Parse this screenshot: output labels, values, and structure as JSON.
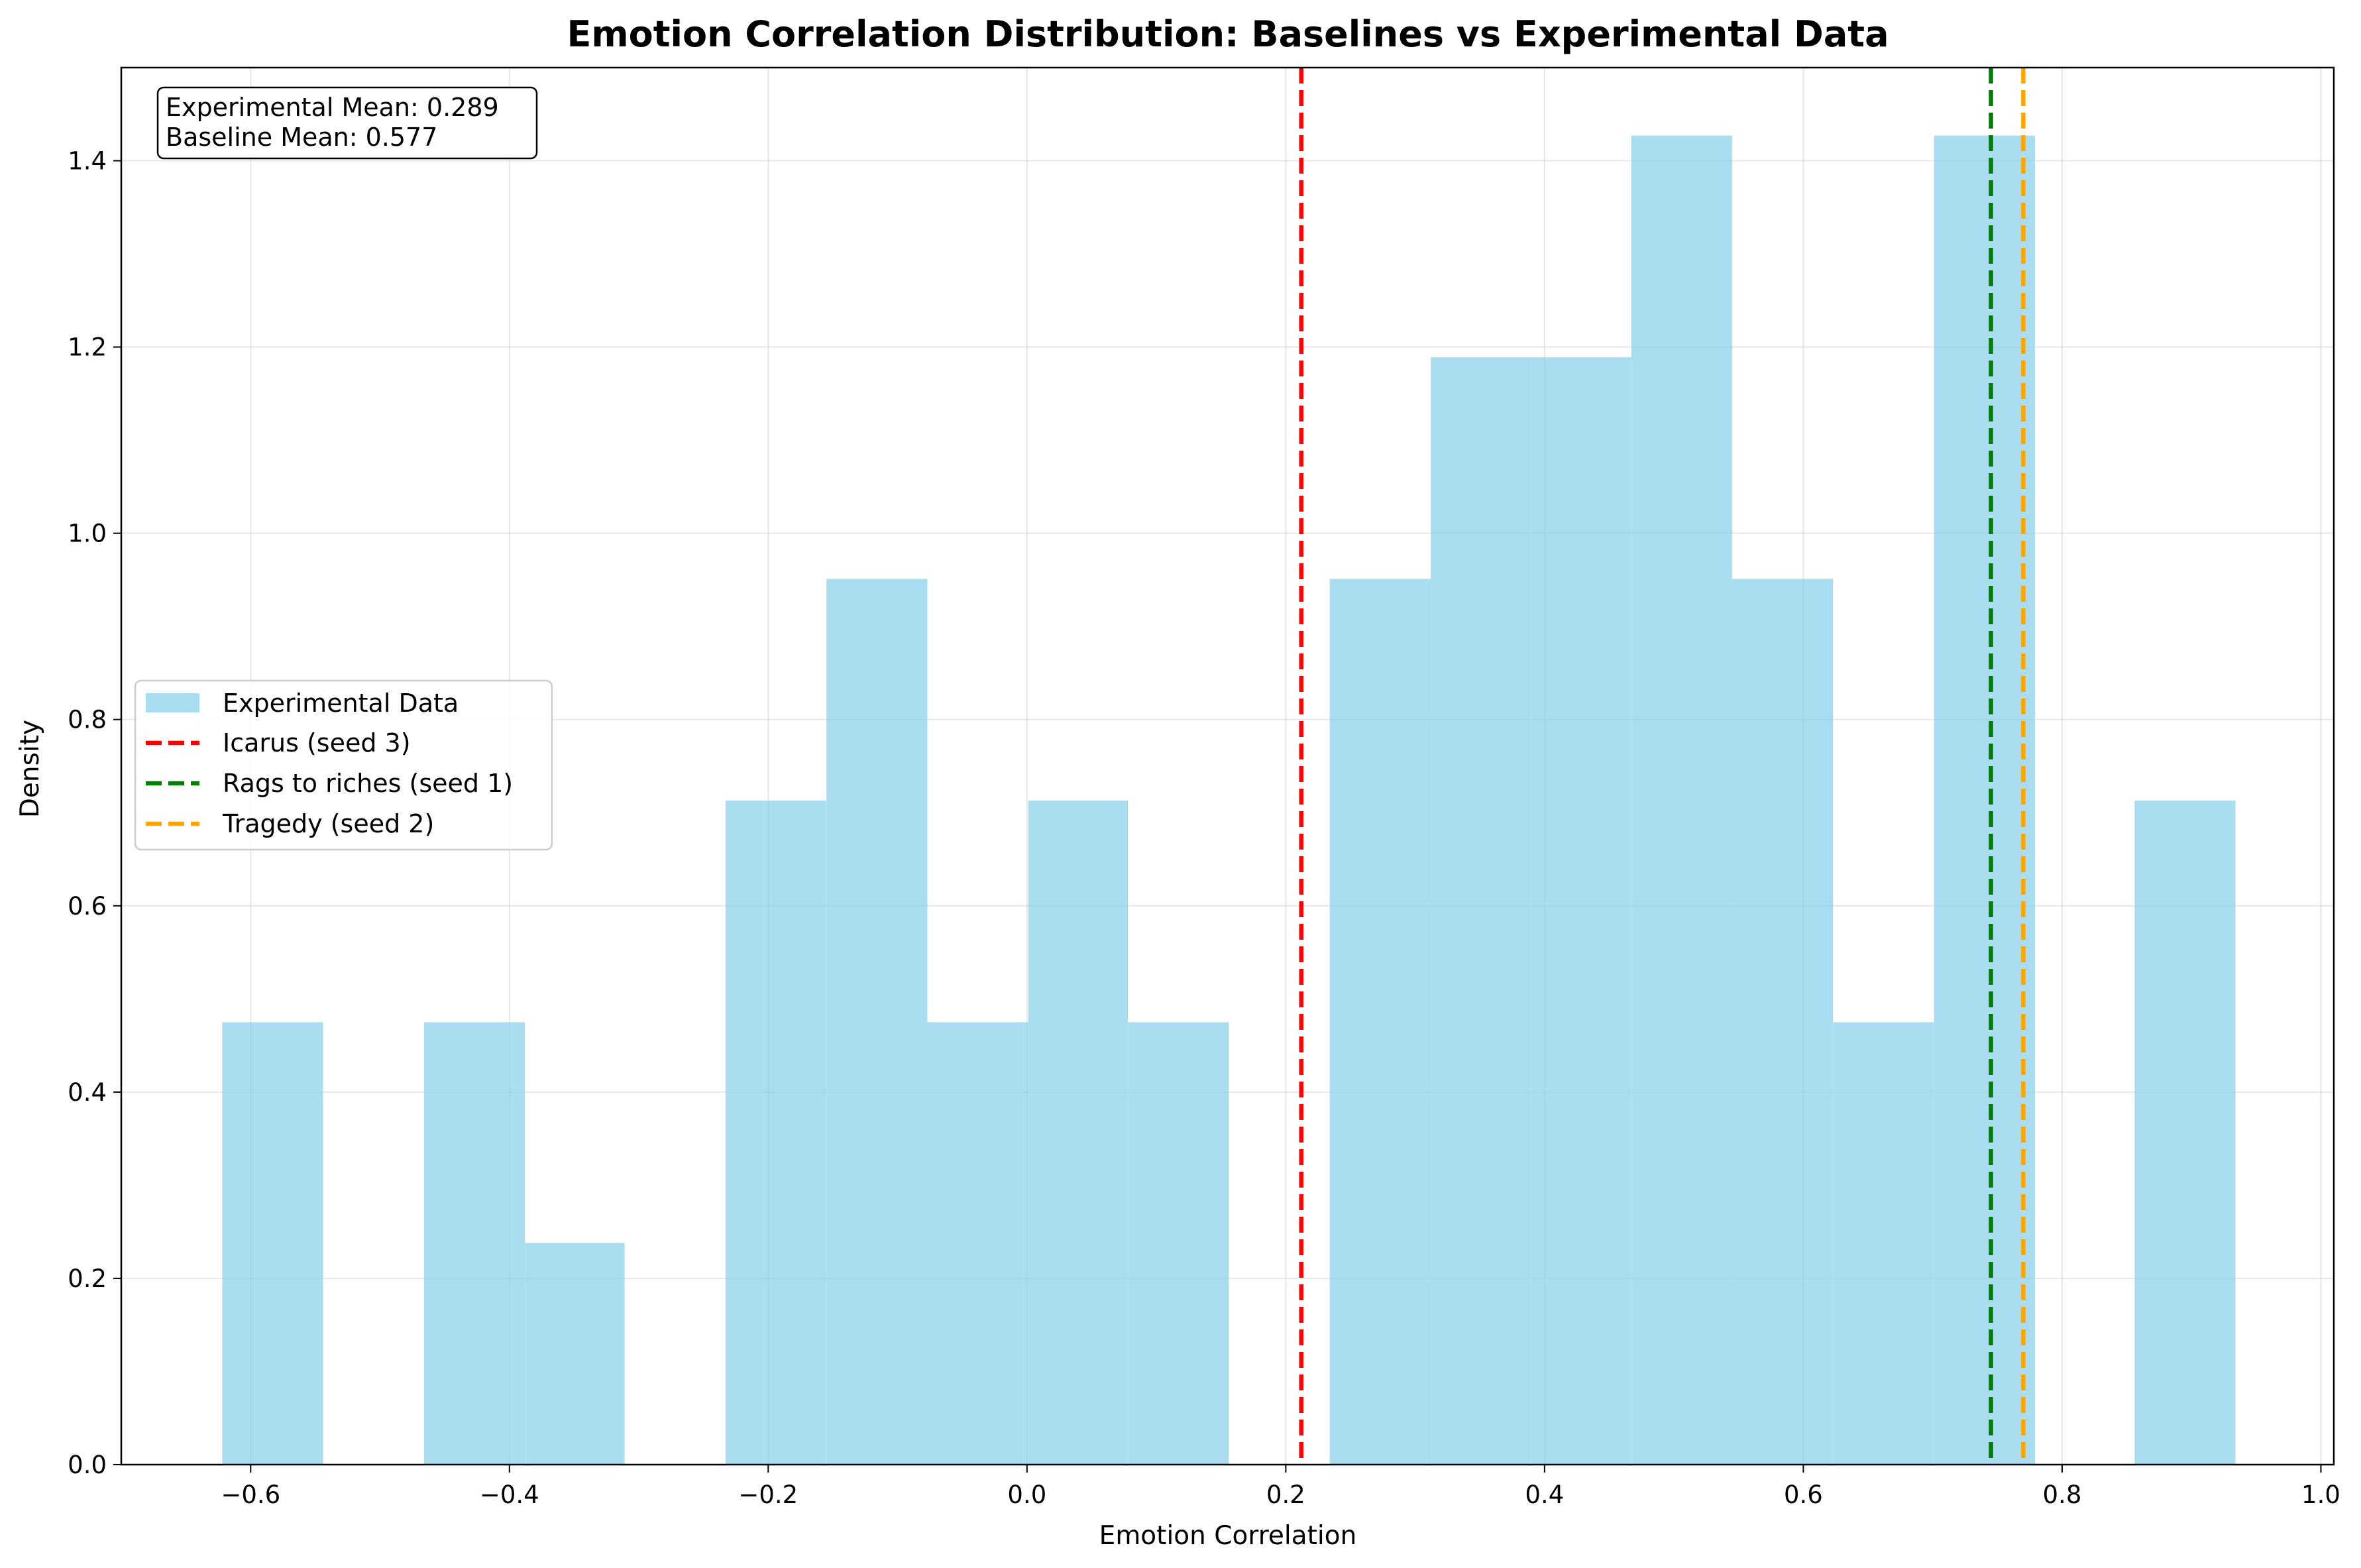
{
  "chart_data": {
    "type": "histogram",
    "title": "Emotion Correlation Distribution: Baselines vs Experimental Data",
    "xlabel": "Emotion Correlation",
    "ylabel": "Density",
    "xlim": [
      -0.7,
      1.01
    ],
    "ylim": [
      0.0,
      1.5
    ],
    "xticks": [
      -0.6,
      -0.4,
      -0.2,
      0.0,
      0.2,
      0.4,
      0.6,
      0.8,
      1.0
    ],
    "xtick_labels": [
      "−0.6",
      "−0.4",
      "−0.2",
      "0.0",
      "0.2",
      "0.4",
      "0.6",
      "0.8",
      "1.0"
    ],
    "yticks": [
      0.0,
      0.2,
      0.4,
      0.6,
      0.8,
      1.0,
      1.2,
      1.4
    ],
    "ytick_labels": [
      "0.0",
      "0.2",
      "0.4",
      "0.6",
      "0.8",
      "1.0",
      "1.2",
      "1.4"
    ],
    "grid": true,
    "bin_color": "#87ceeb",
    "bins": [
      {
        "x0": -0.622,
        "x1": -0.544,
        "density": 0.475
      },
      {
        "x0": -0.544,
        "x1": -0.466,
        "density": 0.0
      },
      {
        "x0": -0.466,
        "x1": -0.388,
        "density": 0.475
      },
      {
        "x0": -0.388,
        "x1": -0.311,
        "density": 0.238
      },
      {
        "x0": -0.311,
        "x1": -0.233,
        "density": 0.0
      },
      {
        "x0": -0.233,
        "x1": -0.155,
        "density": 0.713
      },
      {
        "x0": -0.155,
        "x1": -0.077,
        "density": 0.951
      },
      {
        "x0": -0.077,
        "x1": 0.001,
        "density": 0.475
      },
      {
        "x0": 0.001,
        "x1": 0.078,
        "density": 0.713
      },
      {
        "x0": 0.078,
        "x1": 0.156,
        "density": 0.475
      },
      {
        "x0": 0.156,
        "x1": 0.234,
        "density": 0.0
      },
      {
        "x0": 0.234,
        "x1": 0.312,
        "density": 0.951
      },
      {
        "x0": 0.312,
        "x1": 0.39,
        "density": 1.189
      },
      {
        "x0": 0.39,
        "x1": 0.467,
        "density": 1.189
      },
      {
        "x0": 0.467,
        "x1": 0.545,
        "density": 1.427
      },
      {
        "x0": 0.545,
        "x1": 0.623,
        "density": 0.951
      },
      {
        "x0": 0.623,
        "x1": 0.701,
        "density": 0.475
      },
      {
        "x0": 0.701,
        "x1": 0.779,
        "density": 1.427
      },
      {
        "x0": 0.779,
        "x1": 0.856,
        "density": 0.0
      },
      {
        "x0": 0.856,
        "x1": 0.934,
        "density": 0.713
      }
    ],
    "baselines": [
      {
        "name": "Icarus (seed 3)",
        "x": 0.212,
        "color": "#ff0000"
      },
      {
        "name": "Rags to riches (seed 1)",
        "x": 0.745,
        "color": "#008000"
      },
      {
        "name": "Tragedy (seed 2)",
        "x": 0.77,
        "color": "#ffa500"
      }
    ],
    "legend": {
      "placement": "center-left",
      "entries": [
        "Experimental Data",
        "Icarus (seed 3)",
        "Rags to riches (seed 1)",
        "Tragedy (seed 2)"
      ]
    },
    "stats_box": {
      "placement": "top-left",
      "line1": "Experimental Mean: 0.289",
      "line2": "Baseline Mean: 0.577"
    }
  }
}
